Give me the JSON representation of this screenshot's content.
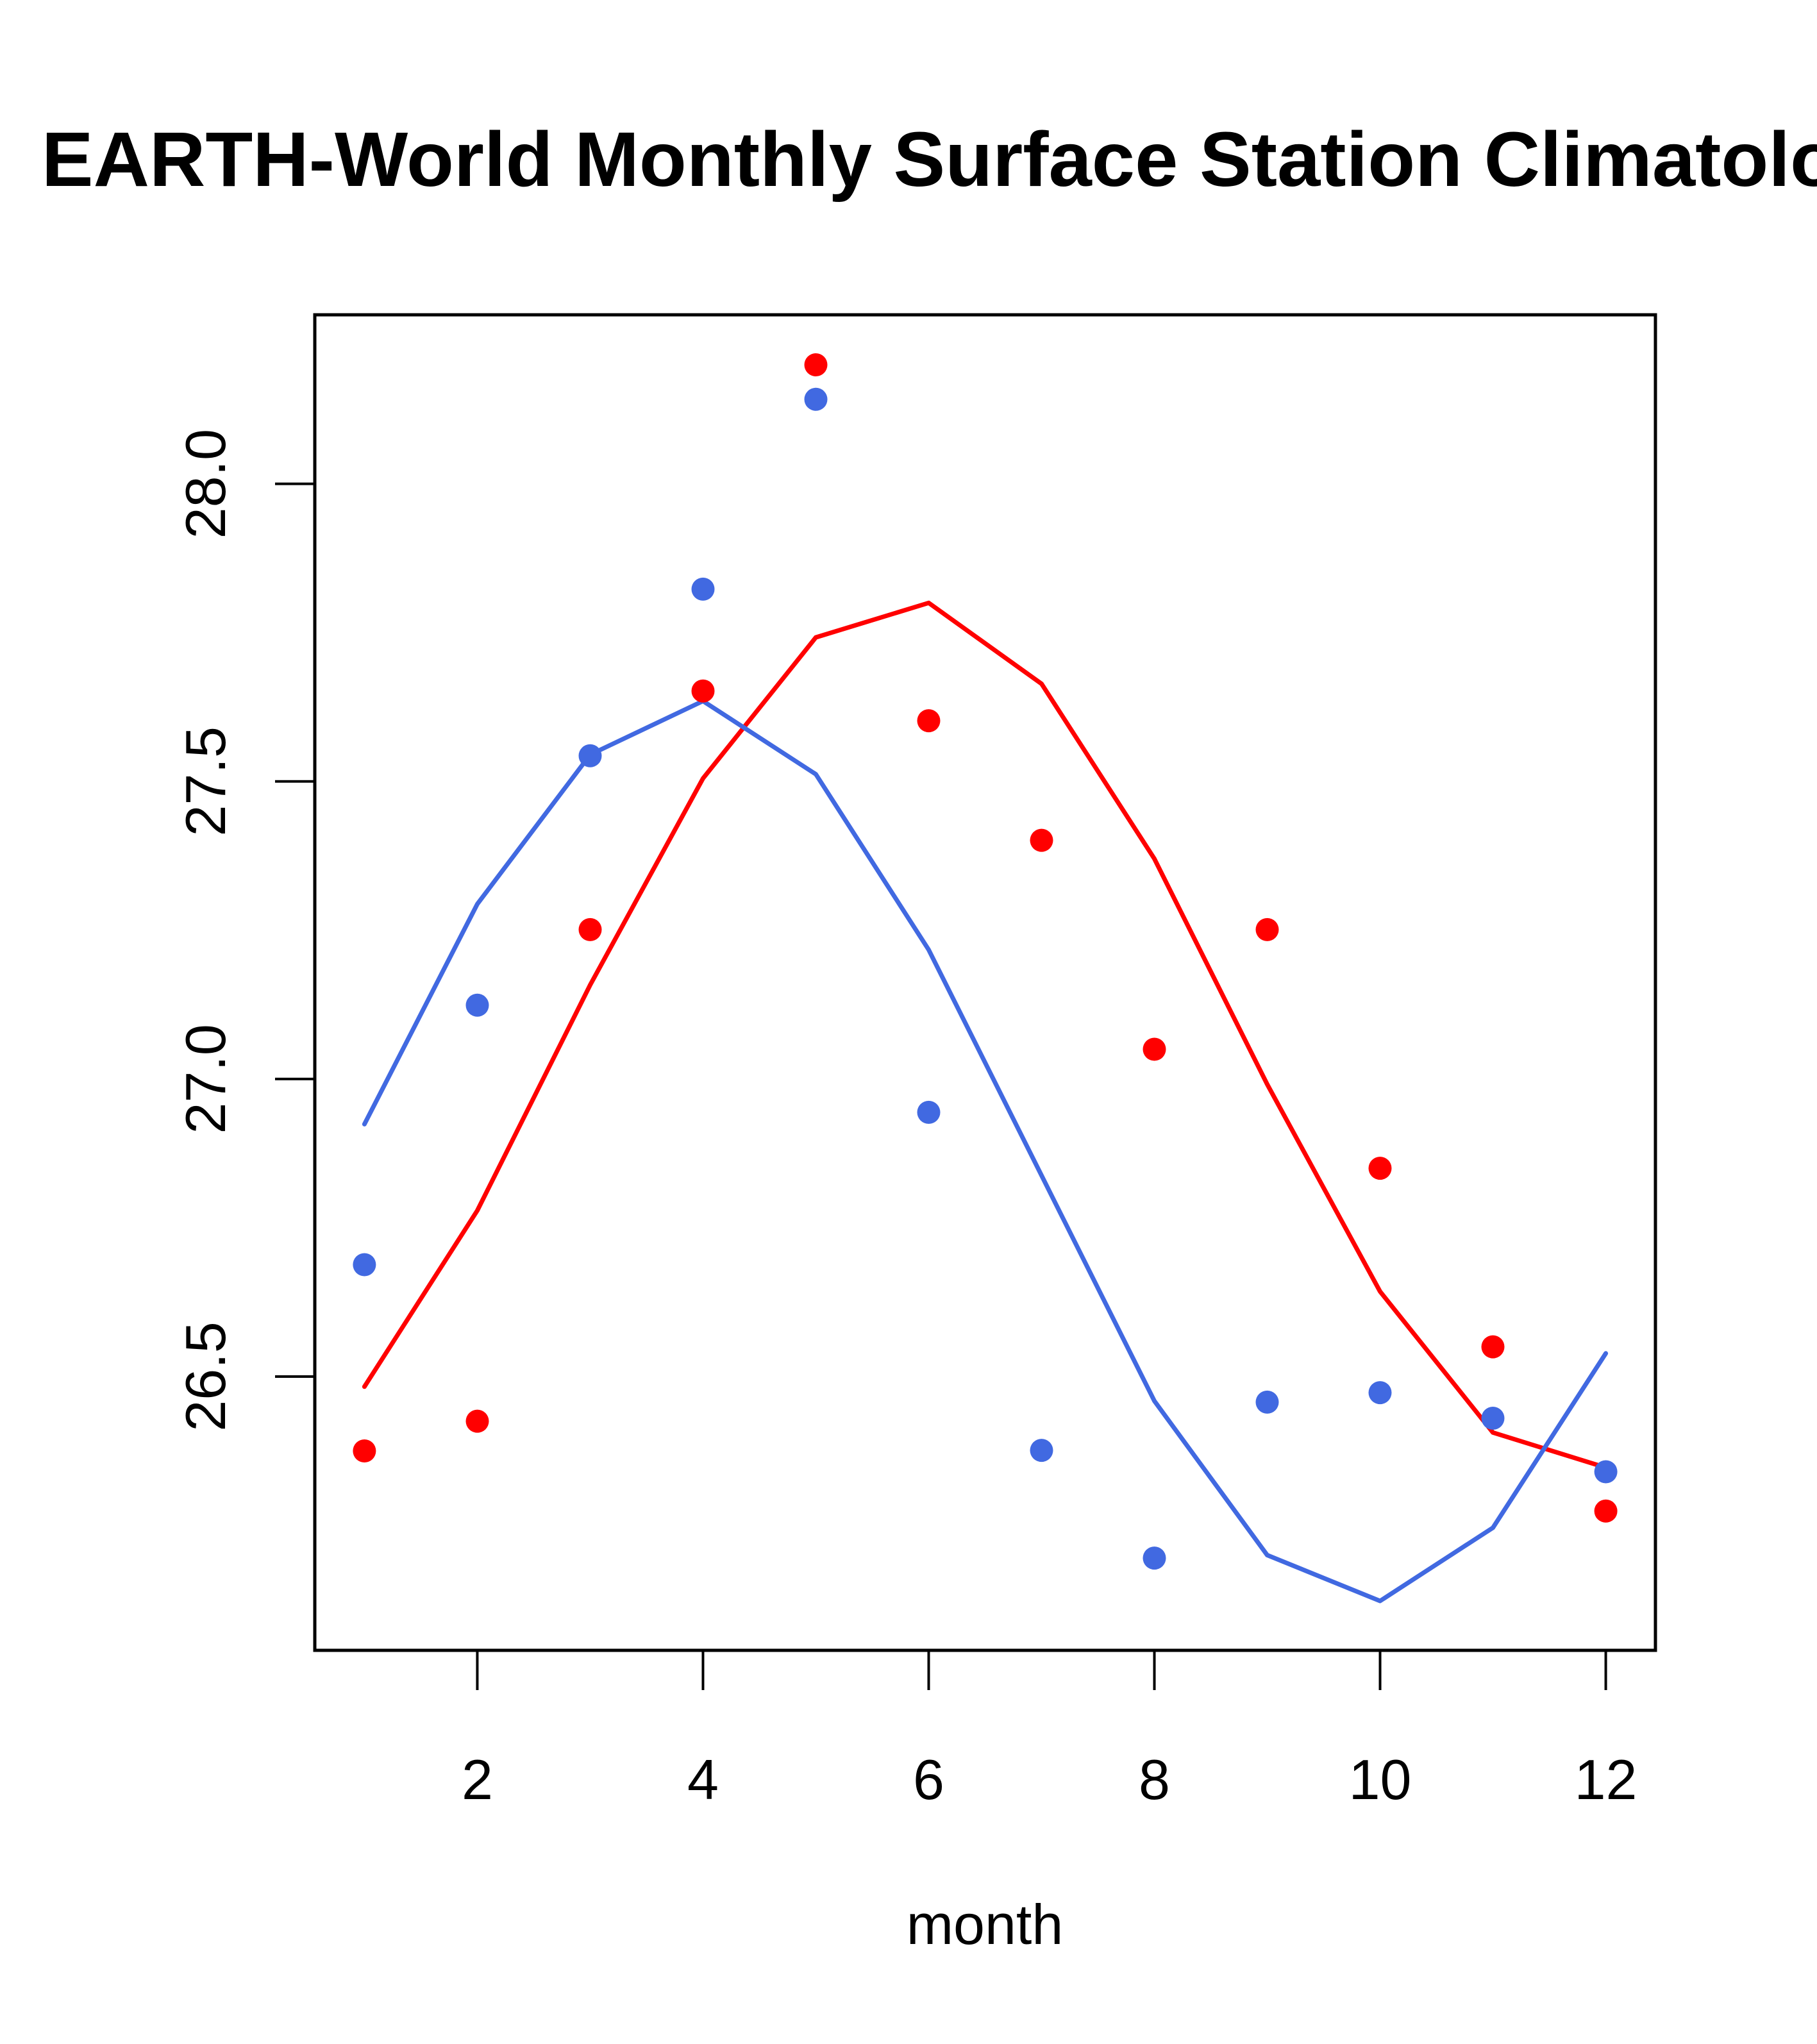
{
  "chart_data": {
    "type": "scatter",
    "title": "EARTH-World Monthly Surface Station Climatology",
    "xlabel": "month",
    "ylabel": "",
    "xlim": [
      0.56,
      12.44
    ],
    "ylim": [
      26.04,
      28.284
    ],
    "xticks": [
      2,
      4,
      6,
      8,
      10,
      12
    ],
    "xtick_labels": [
      "2",
      "4",
      "6",
      "8",
      "10",
      "12"
    ],
    "yticks": [
      26.5,
      27.0,
      27.5,
      28.0
    ],
    "ytick_labels": [
      "26.5",
      "27.0",
      "27.5",
      "28.0"
    ],
    "grid": false,
    "legend": null,
    "x": [
      1,
      2,
      3,
      4,
      5,
      6,
      7,
      8,
      9,
      10,
      11,
      12
    ],
    "series": [
      {
        "name": "red-points",
        "kind": "points",
        "color": "#FF0000",
        "values": [
          26.375,
          26.425,
          27.251,
          27.652,
          28.2,
          27.602,
          27.401,
          27.05,
          27.251,
          26.85,
          26.55,
          26.274
        ]
      },
      {
        "name": "blue-points",
        "kind": "points",
        "color": "#4169E1",
        "values": [
          26.688,
          27.124,
          27.543,
          27.823,
          28.142,
          26.944,
          26.376,
          26.195,
          26.457,
          26.473,
          26.43,
          26.34
        ]
      },
      {
        "name": "red-line",
        "kind": "line",
        "color": "#FF0000",
        "values": [
          26.483,
          26.779,
          27.158,
          27.505,
          27.742,
          27.8,
          27.664,
          27.37,
          26.991,
          26.643,
          26.406,
          26.347
        ]
      },
      {
        "name": "blue-line",
        "kind": "line",
        "color": "#4169E1",
        "values": [
          26.924,
          27.294,
          27.545,
          27.635,
          27.512,
          27.217,
          26.838,
          26.459,
          26.2,
          26.123,
          26.246,
          26.539
        ]
      }
    ]
  }
}
